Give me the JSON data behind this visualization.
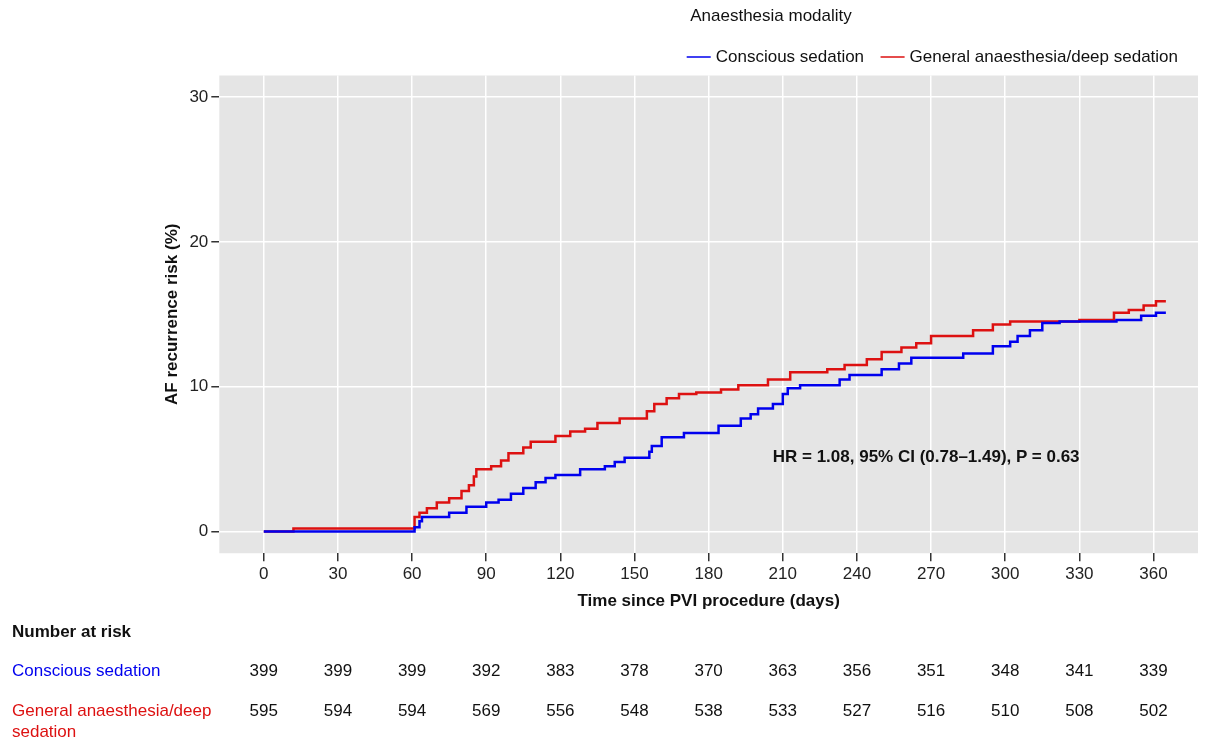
{
  "chart_data": {
    "type": "step",
    "xlabel": "Time since PVI procedure (days)",
    "ylabel": "AF recurrence risk (%)",
    "legend_title": "Anaesthesia modality",
    "legend": "top right",
    "grid": true,
    "xlim": [
      -18,
      378
    ],
    "xticks": [
      0,
      30,
      60,
      90,
      120,
      150,
      180,
      210,
      240,
      270,
      300,
      330,
      360
    ],
    "ylim": [
      -1.5,
      31.5
    ],
    "yticks": [
      0,
      10,
      20,
      30
    ],
    "series": [
      {
        "name": "Conscious sedation",
        "color": "#0000ee",
        "x": [
          0,
          61,
          63,
          64,
          75,
          82,
          90,
          95,
          100,
          105,
          110,
          114,
          118,
          128,
          138,
          142,
          146,
          156,
          157,
          161,
          170,
          184,
          193,
          197,
          200,
          206,
          210,
          212,
          217,
          233,
          237,
          250,
          257,
          262,
          283,
          295,
          302,
          305,
          310,
          315,
          322,
          345,
          355,
          361,
          365
        ],
        "values": [
          0,
          0.3,
          0.7,
          1.0,
          1.3,
          1.7,
          2.0,
          2.2,
          2.6,
          3.0,
          3.4,
          3.7,
          3.9,
          4.3,
          4.5,
          4.8,
          5.1,
          5.5,
          5.9,
          6.5,
          6.8,
          7.3,
          7.8,
          8.1,
          8.5,
          8.8,
          9.5,
          9.9,
          10.1,
          10.5,
          10.8,
          11.2,
          11.6,
          12.0,
          12.3,
          12.8,
          13.1,
          13.5,
          13.9,
          14.4,
          14.5,
          14.6,
          14.9,
          15.1,
          15.1
        ]
      },
      {
        "name": "General anaesthesia/deep sedation",
        "color": "#dd1111",
        "x": [
          0,
          12,
          61,
          63,
          66,
          70,
          75,
          80,
          83,
          85,
          86,
          92,
          96,
          99,
          105,
          108,
          118,
          124,
          130,
          135,
          144,
          155,
          158,
          163,
          168,
          175,
          185,
          192,
          204,
          213,
          228,
          235,
          244,
          250,
          258,
          264,
          270,
          287,
          295,
          302,
          330,
          344,
          350,
          356,
          361,
          365
        ],
        "values": [
          0,
          0.2,
          1.0,
          1.3,
          1.6,
          2.0,
          2.3,
          2.8,
          3.2,
          3.8,
          4.3,
          4.5,
          4.9,
          5.4,
          5.8,
          6.2,
          6.6,
          6.9,
          7.1,
          7.5,
          7.8,
          8.3,
          8.8,
          9.2,
          9.5,
          9.6,
          9.8,
          10.1,
          10.5,
          11.0,
          11.2,
          11.5,
          11.9,
          12.4,
          12.7,
          13.0,
          13.5,
          13.9,
          14.3,
          14.5,
          14.6,
          15.1,
          15.3,
          15.6,
          15.9,
          15.9
        ]
      }
    ],
    "annotations": [
      "HR = 1.08, 95% CI (0.78–1.49), P = 0.63",
      "Number at risk",
      "399",
      "399",
      "399",
      "392",
      "383",
      "378",
      "370",
      "363",
      "356",
      "351",
      "348",
      "341",
      "339",
      "595",
      "594",
      "594",
      "569",
      "556",
      "548",
      "538",
      "533",
      "527",
      "516",
      "510",
      "508",
      "502"
    ]
  }
}
